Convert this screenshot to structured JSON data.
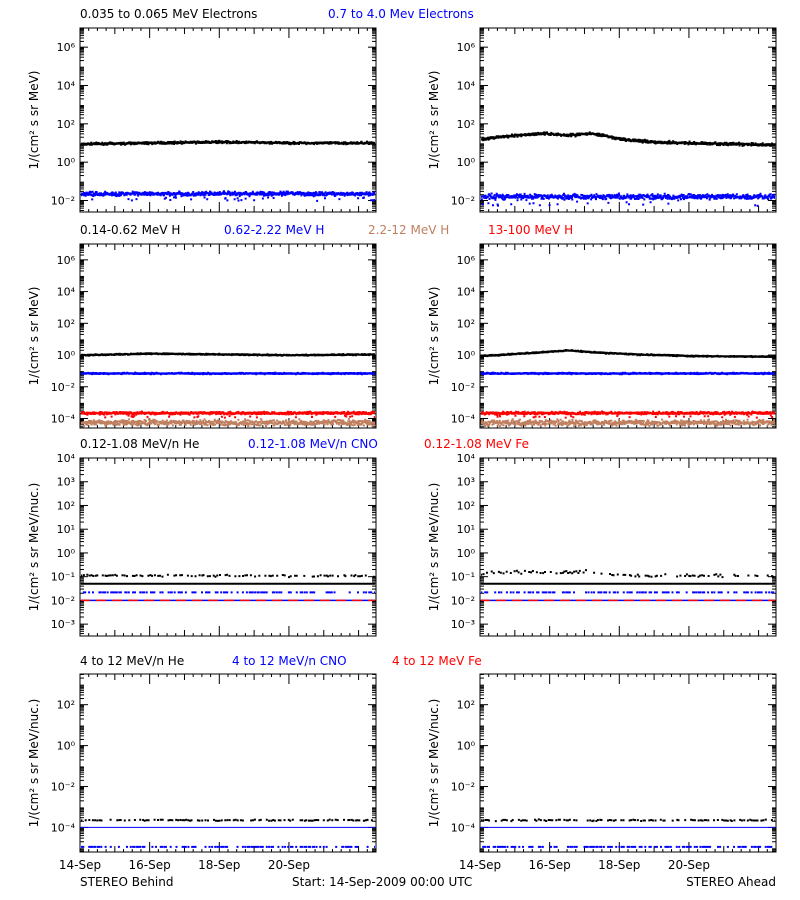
{
  "colors": {
    "black": "#000000",
    "blue": "#0000ff",
    "red": "#ff0000",
    "tan": "#c08060",
    "background": "#ffffff"
  },
  "panel_titles": [
    [
      {
        "text": "0.035 to 0.065 MeV Electrons",
        "color": "#000000"
      },
      {
        "text": "0.7 to 4.0 Mev Electrons",
        "color": "#0000ff"
      }
    ],
    [
      {
        "text": "0.14-0.62 MeV H",
        "color": "#000000"
      },
      {
        "text": "0.62-2.22 MeV H",
        "color": "#0000ff"
      },
      {
        "text": "2.2-12 MeV H",
        "color": "#c08060"
      },
      {
        "text": "13-100 MeV H",
        "color": "#ff0000"
      }
    ],
    [
      {
        "text": "0.12-1.08 MeV/n He",
        "color": "#000000"
      },
      {
        "text": "0.12-1.08 MeV/n CNO",
        "color": "#0000ff"
      },
      {
        "text": "0.12-1.08 MeV Fe",
        "color": "#ff0000"
      }
    ],
    [
      {
        "text": "4 to 12 MeV/n He",
        "color": "#000000"
      },
      {
        "text": "4 to 12 MeV/n CNO",
        "color": "#0000ff"
      },
      {
        "text": "4 to 12 MeV Fe",
        "color": "#ff0000"
      }
    ]
  ],
  "footer": {
    "left": "STEREO Behind",
    "center": "Start: 14-Sep-2009 00:00 UTC",
    "right": "STEREO Ahead"
  },
  "chart_data": [
    {
      "type": "scatter",
      "row": 0,
      "spacecraft": "STEREO Behind",
      "ylabel": "1/(cm² s sr MeV)",
      "yscale": "log",
      "ylim_log10": [
        -2.6,
        7
      ],
      "yticks_log10": [
        -2,
        0,
        2,
        4,
        6
      ],
      "yticklabels": [
        "10⁻²",
        "10⁰",
        "10²",
        "10⁴",
        "10⁶"
      ],
      "x_range_days": [
        14,
        22.5
      ],
      "xticks": [
        14,
        16,
        18,
        20
      ],
      "xticklabels": [
        "14-Sep",
        "16-Sep",
        "18-Sep",
        "20-Sep"
      ],
      "series": [
        {
          "color": "#000000",
          "knots_x": [
            14,
            16,
            18,
            20,
            22.5
          ],
          "knots_log10": [
            1.0,
            1.05,
            1.1,
            1.05,
            1.05
          ],
          "scatter": 0.08
        },
        {
          "color": "#0000ff",
          "knots_x": [
            14,
            22.5
          ],
          "knots_log10": [
            -1.6,
            -1.6
          ],
          "scatter": 0.15
        }
      ]
    },
    {
      "type": "scatter",
      "row": 0,
      "spacecraft": "STEREO Ahead",
      "ylabel": "1/(cm² s sr MeV)",
      "yscale": "log",
      "ylim_log10": [
        -2.6,
        7
      ],
      "yticks_log10": [
        -2,
        0,
        2,
        4,
        6
      ],
      "yticklabels": [
        "10⁻²",
        "10⁰",
        "10²",
        "10⁴",
        "10⁶"
      ],
      "x_range_days": [
        14,
        22.5
      ],
      "xticks": [
        14,
        16,
        18,
        20
      ],
      "xticklabels": [
        "14-Sep",
        "16-Sep",
        "18-Sep",
        "20-Sep"
      ],
      "series": [
        {
          "color": "#000000",
          "knots_x": [
            14,
            15,
            15.8,
            16.5,
            17.2,
            18,
            19,
            20,
            21,
            22.5
          ],
          "knots_log10": [
            1.25,
            1.45,
            1.55,
            1.45,
            1.55,
            1.25,
            1.1,
            1.05,
            1.0,
            0.95
          ],
          "scatter": 0.1
        },
        {
          "color": "#0000ff",
          "knots_x": [
            14,
            22.5
          ],
          "knots_log10": [
            -1.75,
            -1.75
          ],
          "scatter": 0.2
        }
      ]
    },
    {
      "type": "scatter",
      "row": 1,
      "spacecraft": "STEREO Behind",
      "ylabel": "1/(cm² s sr MeV)",
      "yscale": "log",
      "ylim_log10": [
        -4.6,
        7
      ],
      "yticks_log10": [
        -4,
        -2,
        0,
        2,
        4,
        6
      ],
      "yticklabels": [
        "10⁻⁴",
        "10⁻²",
        "10⁰",
        "10²",
        "10⁴",
        "10⁶"
      ],
      "x_range_days": [
        14,
        22.5
      ],
      "xticks": [
        14,
        16,
        18,
        20
      ],
      "xticklabels": [
        "14-Sep",
        "16-Sep",
        "18-Sep",
        "20-Sep"
      ],
      "series": [
        {
          "color": "#000000",
          "knots_x": [
            14,
            16,
            18,
            20,
            22.5
          ],
          "knots_log10": [
            0.05,
            0.15,
            0.1,
            0.05,
            0.1
          ],
          "scatter": 0.05
        },
        {
          "color": "#0000ff",
          "knots_x": [
            14,
            22.5
          ],
          "knots_log10": [
            -1.1,
            -1.1
          ],
          "scatter": 0.06
        },
        {
          "color": "#c08060",
          "knots_x": [
            14,
            22.5
          ],
          "knots_log10": [
            -4.2,
            -4.2
          ],
          "scatter": 0.25
        },
        {
          "color": "#ff0000",
          "knots_x": [
            14,
            22.5
          ],
          "knots_log10": [
            -3.6,
            -3.6
          ],
          "scatter": 0.12
        }
      ]
    },
    {
      "type": "scatter",
      "row": 1,
      "spacecraft": "STEREO Ahead",
      "ylabel": "1/(cm² s sr MeV)",
      "yscale": "log",
      "ylim_log10": [
        -4.6,
        7
      ],
      "yticks_log10": [
        -4,
        -2,
        0,
        2,
        4,
        6
      ],
      "yticklabels": [
        "10⁻⁴",
        "10⁻²",
        "10⁰",
        "10²",
        "10⁴",
        "10⁶"
      ],
      "x_range_days": [
        14,
        22.5
      ],
      "xticks": [
        14,
        16,
        18,
        20
      ],
      "xticklabels": [
        "14-Sep",
        "16-Sep",
        "18-Sep",
        "20-Sep"
      ],
      "series": [
        {
          "color": "#000000",
          "knots_x": [
            14,
            15.5,
            16.5,
            17.5,
            18.5,
            20,
            22.5
          ],
          "knots_log10": [
            0.0,
            0.2,
            0.35,
            0.2,
            0.1,
            0.0,
            -0.05
          ],
          "scatter": 0.05
        },
        {
          "color": "#0000ff",
          "knots_x": [
            14,
            22.5
          ],
          "knots_log10": [
            -1.1,
            -1.1
          ],
          "scatter": 0.06
        },
        {
          "color": "#c08060",
          "knots_x": [
            14,
            22.5
          ],
          "knots_log10": [
            -4.2,
            -4.2
          ],
          "scatter": 0.25
        },
        {
          "color": "#ff0000",
          "knots_x": [
            14,
            22.5
          ],
          "knots_log10": [
            -3.6,
            -3.6
          ],
          "scatter": 0.12
        }
      ]
    },
    {
      "type": "scatter",
      "row": 2,
      "spacecraft": "STEREO Behind",
      "ylabel": "1/(cm² s sr MeV/nuc.)",
      "yscale": "log",
      "ylim_log10": [
        -3.5,
        4
      ],
      "yticks_log10": [
        -3,
        -2,
        -1,
        0,
        1,
        2,
        3,
        4
      ],
      "yticklabels": [
        "10⁻³",
        "10⁻²",
        "10⁻¹",
        "10⁰",
        "10¹",
        "10²",
        "10³",
        "10⁴"
      ],
      "x_range_days": [
        14,
        22.5
      ],
      "xticks": [
        14,
        16,
        18,
        20
      ],
      "xticklabels": [
        "14-Sep",
        "16-Sep",
        "18-Sep",
        "20-Sep"
      ],
      "series": [
        {
          "color": "#000000",
          "knots_x": [
            14,
            22.5
          ],
          "knots_log10": [
            -1.3,
            -1.3
          ],
          "scatter": 0,
          "style": "line",
          "width": 2
        },
        {
          "color": "#000000",
          "knots_x": [
            14,
            22.5
          ],
          "knots_log10": [
            -0.92,
            -0.92
          ],
          "scatter": 0.06,
          "style": "sparse"
        },
        {
          "color": "#0000ff",
          "knots_x": [
            14,
            22.5
          ],
          "knots_log10": [
            -1.62,
            -1.62
          ],
          "scatter": 0,
          "style": "sparse"
        },
        {
          "color": "#0000ff",
          "knots_x": [
            14,
            22.5
          ],
          "knots_log10": [
            -2.0,
            -2.0
          ],
          "scatter": 0,
          "style": "line",
          "width": 1.5
        },
        {
          "color": "#ff0000",
          "knots_x": [
            14,
            22.5
          ],
          "knots_log10": [
            -2.0,
            -2.0
          ],
          "scatter": 0,
          "style": "dashed",
          "width": 1.5
        }
      ]
    },
    {
      "type": "scatter",
      "row": 2,
      "spacecraft": "STEREO Ahead",
      "ylabel": "1/(cm² s sr MeV/nuc.)",
      "yscale": "log",
      "ylim_log10": [
        -3.5,
        4
      ],
      "yticks_log10": [
        -3,
        -2,
        -1,
        0,
        1,
        2,
        3,
        4
      ],
      "yticklabels": [
        "10⁻³",
        "10⁻²",
        "10⁻¹",
        "10⁰",
        "10¹",
        "10²",
        "10³",
        "10⁴"
      ],
      "x_range_days": [
        14,
        22.5
      ],
      "xticks": [
        14,
        16,
        18,
        20
      ],
      "xticklabels": [
        "14-Sep",
        "16-Sep",
        "18-Sep",
        "20-Sep"
      ],
      "series": [
        {
          "color": "#000000",
          "knots_x": [
            14,
            22.5
          ],
          "knots_log10": [
            -1.3,
            -1.3
          ],
          "scatter": 0,
          "style": "line",
          "width": 2
        },
        {
          "color": "#000000",
          "knots_x": [
            14,
            15,
            16,
            17,
            18,
            22.5
          ],
          "knots_log10": [
            -0.85,
            -0.75,
            -0.8,
            -0.75,
            -0.9,
            -0.95
          ],
          "scatter": 0.1,
          "style": "sparse"
        },
        {
          "color": "#0000ff",
          "knots_x": [
            14,
            22.5
          ],
          "knots_log10": [
            -1.62,
            -1.62
          ],
          "scatter": 0,
          "style": "sparse"
        },
        {
          "color": "#0000ff",
          "knots_x": [
            14,
            22.5
          ],
          "knots_log10": [
            -2.0,
            -2.0
          ],
          "scatter": 0,
          "style": "line",
          "width": 1.5
        },
        {
          "color": "#ff0000",
          "knots_x": [
            14,
            22.5
          ],
          "knots_log10": [
            -2.0,
            -2.0
          ],
          "scatter": 0,
          "style": "dashed",
          "width": 1.5
        }
      ]
    },
    {
      "type": "scatter",
      "row": 3,
      "spacecraft": "STEREO Behind",
      "ylabel": "1/(cm² s sr MeV/nuc.)",
      "yscale": "log",
      "ylim_log10": [
        -5.2,
        3.5
      ],
      "yticks_log10": [
        -4,
        -2,
        0,
        2
      ],
      "yticklabels": [
        "10⁻⁴",
        "10⁻²",
        "10⁰",
        "10²"
      ],
      "x_range_days": [
        14,
        22.5
      ],
      "xticks": [
        14,
        16,
        18,
        20
      ],
      "xticklabels": [
        "14-Sep",
        "16-Sep",
        "18-Sep",
        "20-Sep"
      ],
      "series": [
        {
          "color": "#000000",
          "knots_x": [
            14,
            22.5
          ],
          "knots_log10": [
            -3.6,
            -3.6
          ],
          "scatter": 0.05,
          "style": "sparse"
        },
        {
          "color": "#0000ff",
          "knots_x": [
            14,
            22.5
          ],
          "knots_log10": [
            -4.0,
            -4.0
          ],
          "scatter": 0,
          "style": "line",
          "width": 1
        },
        {
          "color": "#0000ff",
          "knots_x": [
            14,
            22.5
          ],
          "knots_log10": [
            -4.9,
            -4.9
          ],
          "scatter": 0,
          "style": "sparse"
        }
      ]
    },
    {
      "type": "scatter",
      "row": 3,
      "spacecraft": "STEREO Ahead",
      "ylabel": "1/(cm² s sr MeV/nuc.)",
      "yscale": "log",
      "ylim_log10": [
        -5.2,
        3.5
      ],
      "yticks_log10": [
        -4,
        -2,
        0,
        2
      ],
      "yticklabels": [
        "10⁻⁴",
        "10⁻²",
        "10⁰",
        "10²"
      ],
      "x_range_days": [
        14,
        22.5
      ],
      "xticks": [
        14,
        16,
        18,
        20
      ],
      "xticklabels": [
        "14-Sep",
        "16-Sep",
        "18-Sep",
        "20-Sep"
      ],
      "series": [
        {
          "color": "#000000",
          "knots_x": [
            14,
            22.5
          ],
          "knots_log10": [
            -3.6,
            -3.6
          ],
          "scatter": 0.05,
          "style": "sparse"
        },
        {
          "color": "#0000ff",
          "knots_x": [
            14,
            22.5
          ],
          "knots_log10": [
            -4.0,
            -4.0
          ],
          "scatter": 0,
          "style": "line",
          "width": 1
        },
        {
          "color": "#0000ff",
          "knots_x": [
            14,
            22.5
          ],
          "knots_log10": [
            -4.9,
            -4.9
          ],
          "scatter": 0,
          "style": "sparse"
        }
      ]
    }
  ]
}
